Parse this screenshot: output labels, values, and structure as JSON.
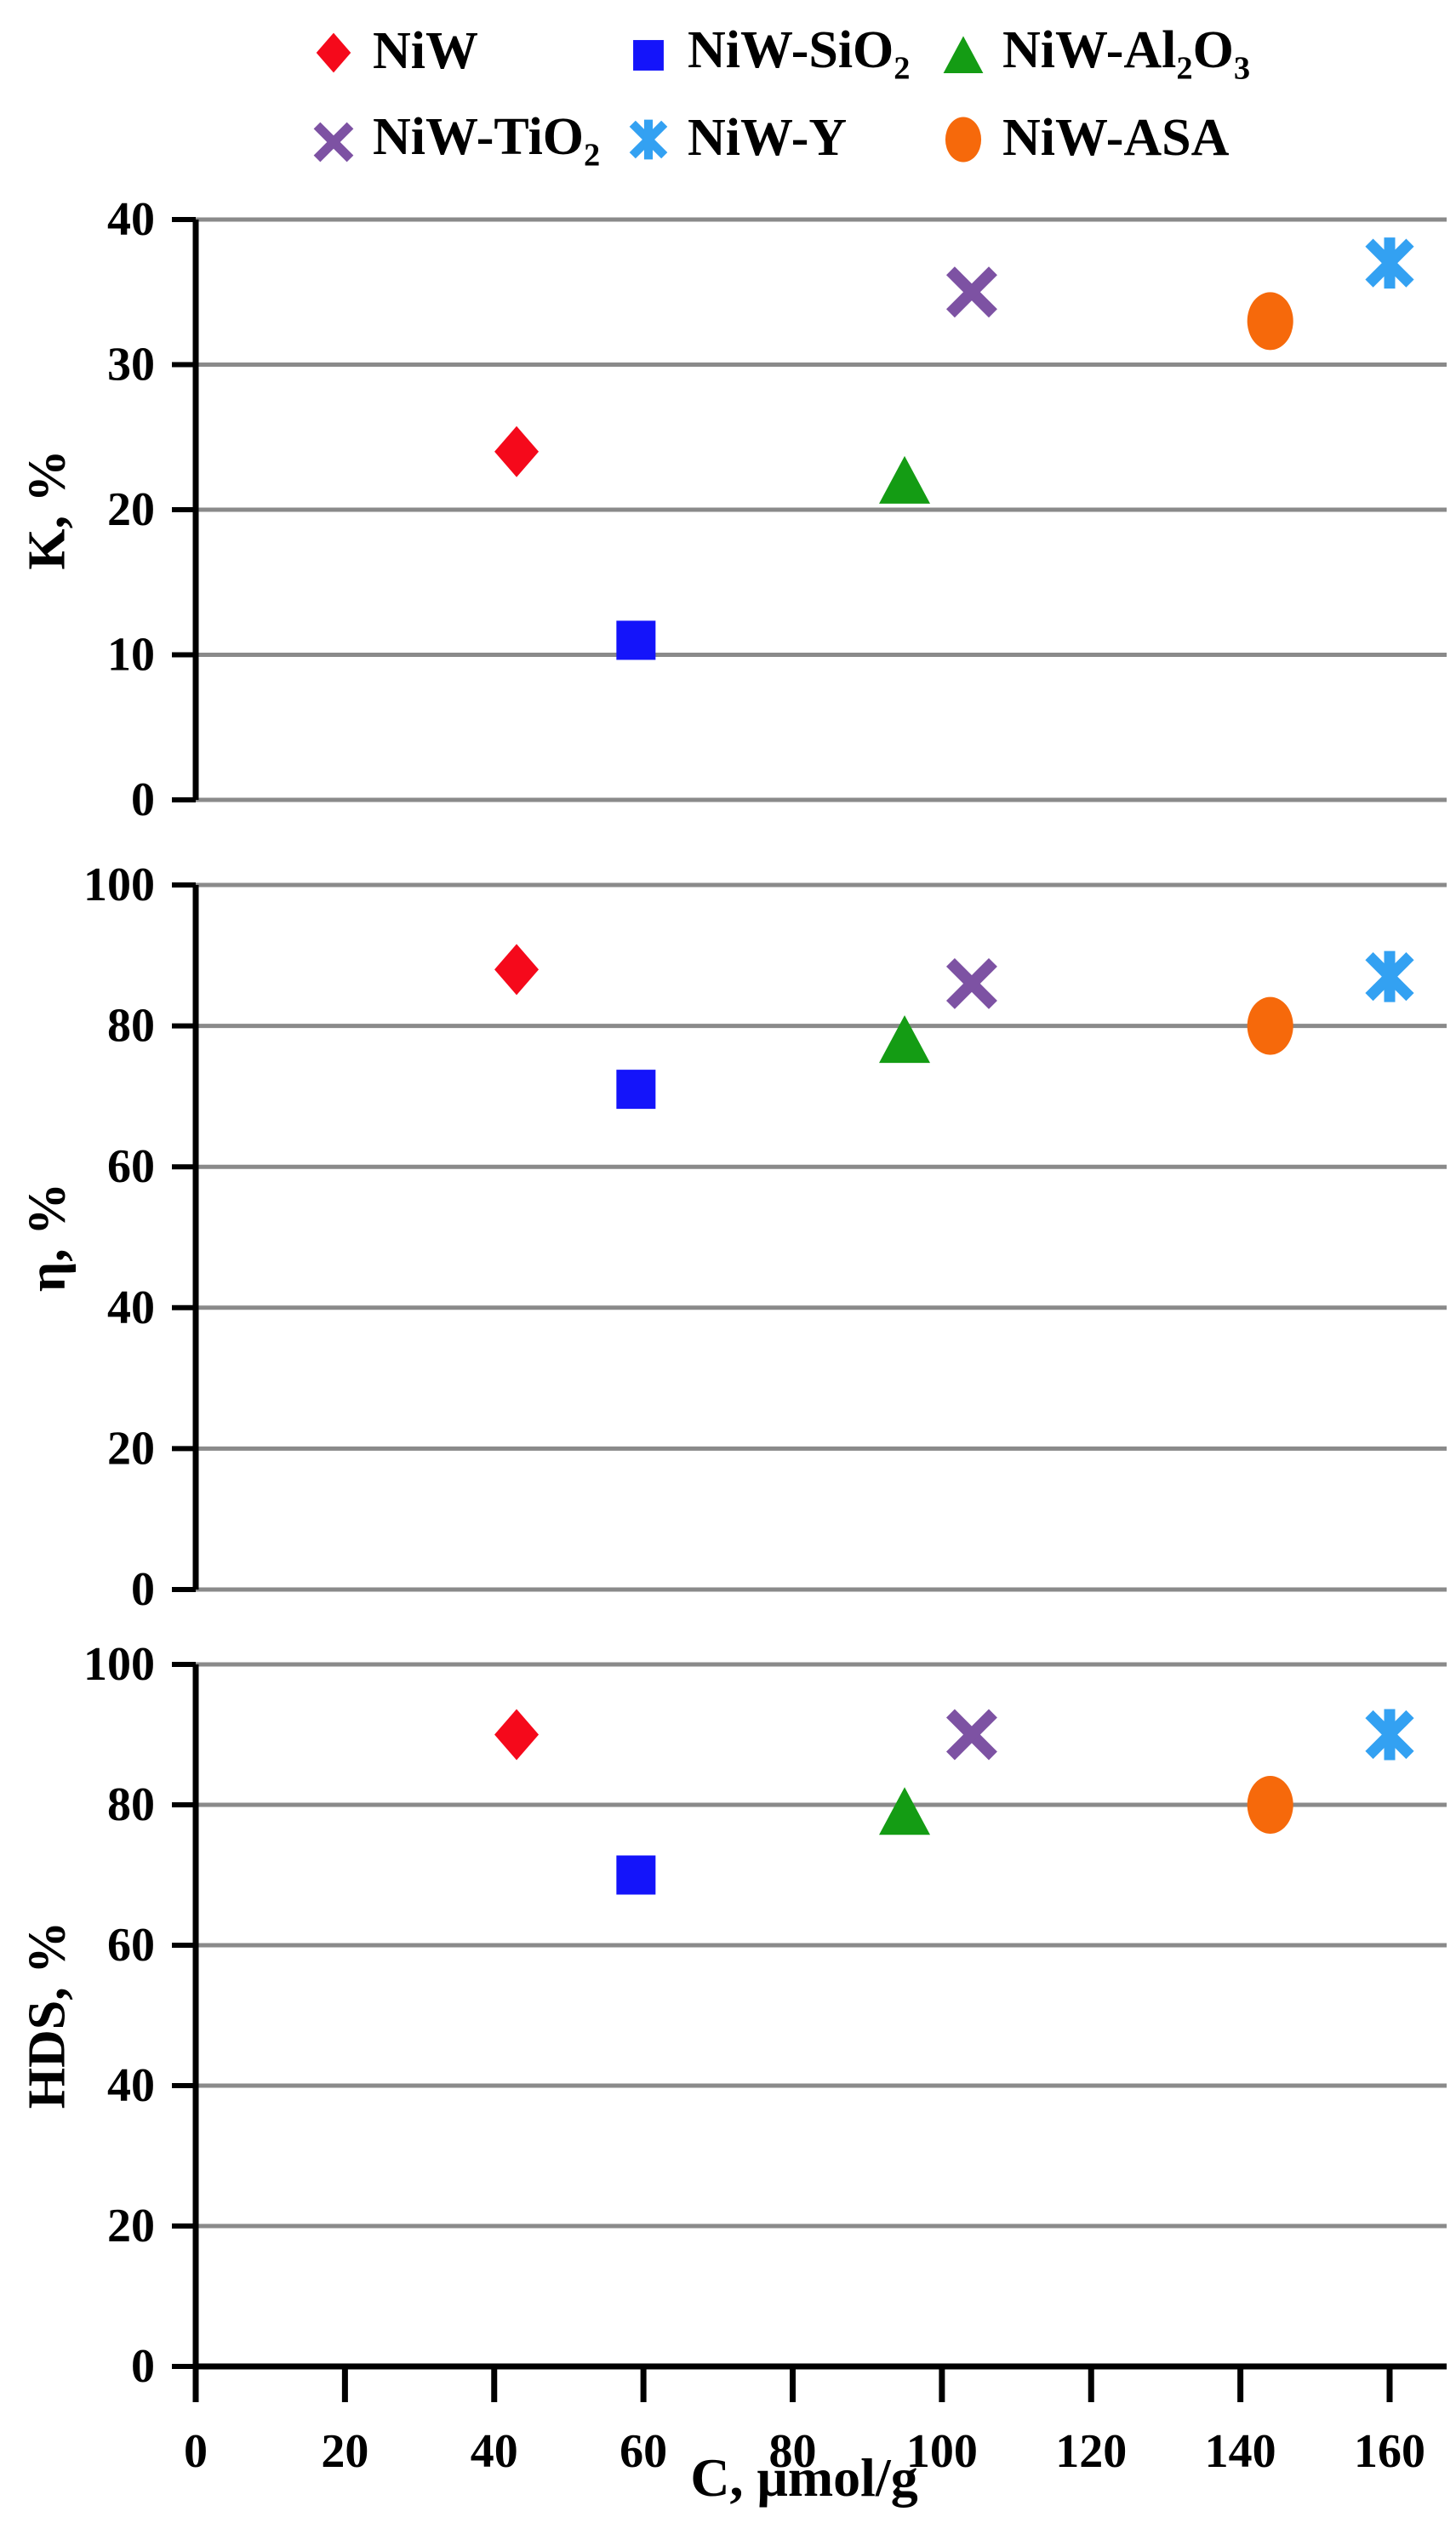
{
  "figure": {
    "background": "#FFFFFF",
    "grid_color": "#8A8A8A",
    "axis_color": "#000000",
    "text_color": "#000000"
  },
  "legend": {
    "rows": [
      [
        {
          "name": "NiW",
          "marker": "diamond",
          "color": "#F5091B",
          "label": [
            {
              "t": "NiW"
            }
          ]
        },
        {
          "name": "NiW-SiO2",
          "marker": "square",
          "color": "#1414FA",
          "label": [
            {
              "t": "NiW-SiO"
            },
            {
              "t": "2",
              "sub": true
            }
          ]
        },
        {
          "name": "NiW-Al2O3",
          "marker": "triangle",
          "color": "#149C14",
          "label": [
            {
              "t": "NiW-Al"
            },
            {
              "t": "2",
              "sub": true
            },
            {
              "t": "O"
            },
            {
              "t": "3",
              "sub": true
            }
          ]
        }
      ],
      [
        {
          "name": "NiW-TiO2",
          "marker": "x",
          "color": "#7D52A3",
          "label": [
            {
              "t": "NiW-TiO"
            },
            {
              "t": "2",
              "sub": true
            }
          ]
        },
        {
          "name": "NiW-Y",
          "marker": "star",
          "color": "#33A1F2",
          "label": [
            {
              "t": "NiW-Y"
            }
          ]
        },
        {
          "name": "NiW-ASA",
          "marker": "circle",
          "color": "#F6690B",
          "label": [
            {
              "t": "NiW-ASA"
            }
          ]
        }
      ]
    ]
  },
  "chart_data": {
    "type": "scatter",
    "xlabel": "C, μmol/g",
    "xlim": [
      0,
      168
    ],
    "x_ticks": [
      0,
      20,
      40,
      60,
      80,
      100,
      120,
      140,
      160
    ],
    "grid": true,
    "legend_position": "top",
    "panels": [
      {
        "key": "K",
        "ylabel": "K, %",
        "ylim": [
          0,
          40
        ],
        "y_ticks": [
          0,
          10,
          20,
          30,
          40
        ]
      },
      {
        "key": "eta",
        "ylabel": "η, %",
        "ylim": [
          0,
          100
        ],
        "y_ticks": [
          0,
          20,
          40,
          60,
          80,
          100
        ]
      },
      {
        "key": "HDS",
        "ylabel": "HDS, %",
        "ylim": [
          0,
          100
        ],
        "y_ticks": [
          0,
          20,
          40,
          60,
          80,
          100
        ]
      }
    ],
    "series": [
      {
        "name": "NiW",
        "marker": "diamond",
        "color": "#F5091B",
        "x": 43,
        "values": {
          "K": 24,
          "eta": 88,
          "HDS": 90
        }
      },
      {
        "name": "NiW-SiO2",
        "marker": "square",
        "color": "#1414FA",
        "x": 59,
        "values": {
          "K": 11,
          "eta": 71,
          "HDS": 70
        }
      },
      {
        "name": "NiW-Al2O3",
        "marker": "triangle",
        "color": "#149C14",
        "x": 95,
        "values": {
          "K": 22,
          "eta": 78,
          "HDS": 79
        }
      },
      {
        "name": "NiW-TiO2",
        "marker": "x",
        "color": "#7D52A3",
        "x": 104,
        "values": {
          "K": 35,
          "eta": 86,
          "HDS": 90
        }
      },
      {
        "name": "NiW-Y",
        "marker": "star",
        "color": "#33A1F2",
        "x": 160,
        "values": {
          "K": 37,
          "eta": 87,
          "HDS": 90
        }
      },
      {
        "name": "NiW-ASA",
        "marker": "circle",
        "color": "#F6690B",
        "x": 144,
        "values": {
          "K": 33,
          "eta": 80,
          "HDS": 80
        }
      }
    ]
  }
}
